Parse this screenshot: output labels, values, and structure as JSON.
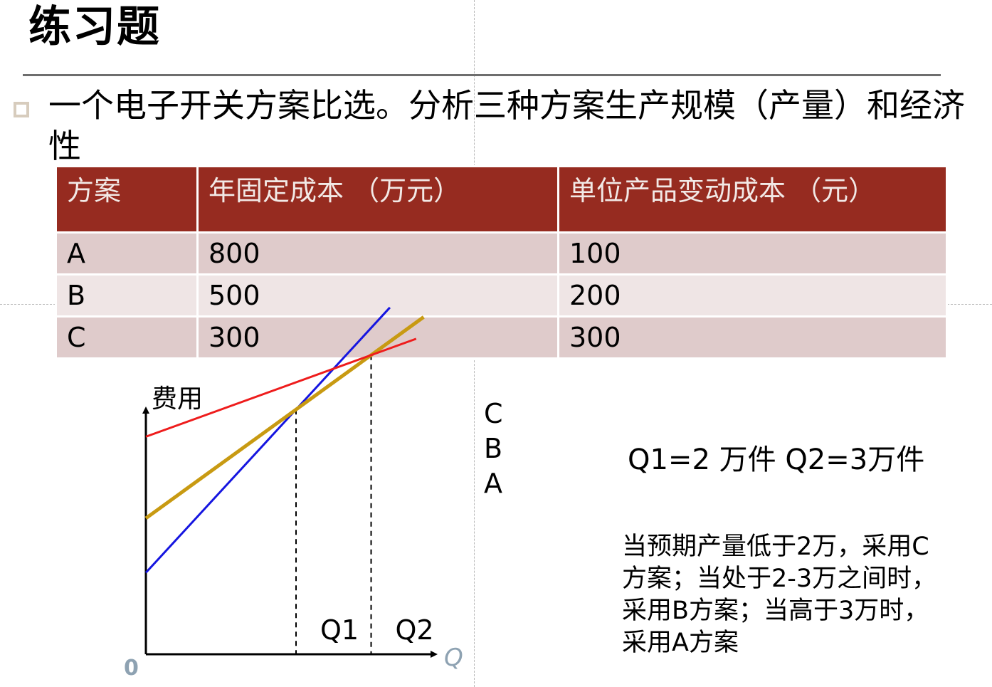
{
  "slide": {
    "title": "练习题",
    "bullet_text": "一个电子开关方案比选。分析三种方案生产规模（产量）和经济性"
  },
  "table": {
    "headers": [
      "方案",
      "年固定成本 （万元）",
      "单位产品变动成本 （元）"
    ],
    "rows": [
      [
        "A",
        "800",
        "100"
      ],
      [
        "B",
        "500",
        "200"
      ],
      [
        "C",
        "300",
        "300"
      ]
    ]
  },
  "chart_data": {
    "type": "line",
    "ylabel": "费用",
    "xlabel": "Q",
    "origin_label": "0",
    "series": [
      {
        "name": "C",
        "color": "#1515e0",
        "x": [
          0,
          3.25
        ],
        "y": [
          300,
          1275
        ]
      },
      {
        "name": "B",
        "color": "#c89a12",
        "x": [
          0,
          3.7
        ],
        "y": [
          500,
          1240
        ]
      },
      {
        "name": "A",
        "color": "#ee1c1c",
        "x": [
          0,
          3.6
        ],
        "y": [
          800,
          1160
        ]
      }
    ],
    "breakpoints": [
      {
        "label": "Q1",
        "x": 2,
        "y": 900
      },
      {
        "label": "Q2",
        "x": 3,
        "y": 1100
      }
    ],
    "xlim": [
      0,
      3.85
    ],
    "ylim": [
      0,
      1500
    ]
  },
  "results": {
    "equation": "Q1=2 万件   Q2=3万件",
    "conclusion": "当预期产量低于2万，采用C方案；当处于2-3万之间时，采用B方案；当高于3万时，采用A方案"
  }
}
